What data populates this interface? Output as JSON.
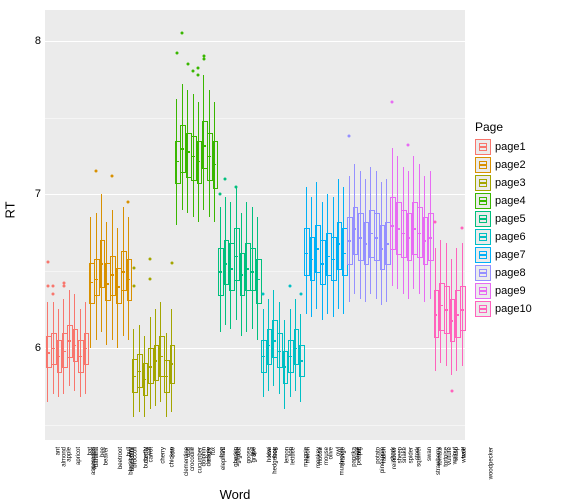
{
  "chart": {
    "type": "boxplot",
    "ylabel": "RT",
    "xlabel": "Word",
    "legend_title": "Page",
    "background_color": "#ebebeb",
    "grid_color": "#ffffff",
    "ylim": [
      5.4,
      8.2
    ],
    "yticks": [
      6,
      7,
      8
    ],
    "label_fontsize": 13,
    "tick_fontsize": 11,
    "xtick_fontsize": 6,
    "pages": [
      {
        "name": "page1",
        "color": "#f8766d"
      },
      {
        "name": "page2",
        "color": "#d89000"
      },
      {
        "name": "page3",
        "color": "#a3a500"
      },
      {
        "name": "page4",
        "color": "#39b600"
      },
      {
        "name": "page5",
        "color": "#00bf7d"
      },
      {
        "name": "page6",
        "color": "#00bfc4"
      },
      {
        "name": "page7",
        "color": "#00b0f6"
      },
      {
        "name": "page8",
        "color": "#9590ff"
      },
      {
        "name": "page9",
        "color": "#e76bf3"
      },
      {
        "name": "page10",
        "color": "#ff62bc"
      }
    ],
    "words": [
      {
        "w": "almond",
        "p": 0,
        "min": 5.65,
        "q1": 5.88,
        "med": 5.97,
        "q3": 6.08,
        "max": 6.3,
        "out": [
          6.56,
          6.4
        ]
      },
      {
        "w": "ant",
        "p": 0,
        "min": 5.7,
        "q1": 5.9,
        "med": 6.0,
        "q3": 6.1,
        "max": 6.3,
        "out": [
          6.35,
          6.4
        ]
      },
      {
        "w": "apple",
        "p": 0,
        "min": 5.68,
        "q1": 5.85,
        "med": 5.95,
        "q3": 6.05,
        "max": 6.25,
        "out": []
      },
      {
        "w": "apricot",
        "p": 0,
        "min": 5.7,
        "q1": 5.88,
        "med": 5.98,
        "q3": 6.1,
        "max": 6.32,
        "out": [
          6.4,
          6.42
        ]
      },
      {
        "w": "asparagus",
        "p": 0,
        "min": 5.75,
        "q1": 5.95,
        "med": 6.05,
        "q3": 6.15,
        "max": 6.38,
        "out": []
      },
      {
        "w": "avocado",
        "p": 0,
        "min": 5.72,
        "q1": 5.92,
        "med": 6.02,
        "q3": 6.12,
        "max": 6.35,
        "out": []
      },
      {
        "w": "banana",
        "p": 0,
        "min": 5.68,
        "q1": 5.85,
        "med": 5.95,
        "q3": 6.05,
        "max": 6.25,
        "out": []
      },
      {
        "w": "bat",
        "p": 0,
        "min": 5.7,
        "q1": 5.9,
        "med": 6.0,
        "q3": 6.1,
        "max": 6.3,
        "out": []
      },
      {
        "w": "beaver",
        "p": 1,
        "min": 6.0,
        "q1": 6.3,
        "med": 6.43,
        "q3": 6.55,
        "max": 6.85,
        "out": []
      },
      {
        "w": "bee",
        "p": 1,
        "min": 6.05,
        "q1": 6.35,
        "med": 6.45,
        "q3": 6.58,
        "max": 6.88,
        "out": [
          7.15
        ]
      },
      {
        "w": "beetroot",
        "p": 1,
        "min": 6.1,
        "q1": 6.4,
        "med": 6.55,
        "q3": 6.7,
        "max": 7.0,
        "out": []
      },
      {
        "w": "blackberry",
        "p": 1,
        "min": 6.02,
        "q1": 6.32,
        "med": 6.42,
        "q3": 6.55,
        "max": 6.82,
        "out": []
      },
      {
        "w": "blackbird",
        "p": 1,
        "min": 6.05,
        "q1": 6.35,
        "med": 6.48,
        "q3": 6.6,
        "max": 6.9,
        "out": [
          7.12
        ]
      },
      {
        "w": "broccoli",
        "p": 1,
        "min": 6.0,
        "q1": 6.3,
        "med": 6.4,
        "q3": 6.52,
        "max": 6.78,
        "out": []
      },
      {
        "w": "bull",
        "p": 1,
        "min": 6.08,
        "q1": 6.38,
        "med": 6.5,
        "q3": 6.63,
        "max": 6.92,
        "out": []
      },
      {
        "w": "butterfly",
        "p": 1,
        "min": 6.05,
        "q1": 6.32,
        "med": 6.45,
        "q3": 6.58,
        "max": 6.85,
        "out": [
          6.95
        ]
      },
      {
        "w": "camel",
        "p": 2,
        "min": 5.55,
        "q1": 5.72,
        "med": 5.82,
        "q3": 5.93,
        "max": 6.12,
        "out": [
          6.4,
          6.52
        ]
      },
      {
        "w": "carrot",
        "p": 2,
        "min": 5.58,
        "q1": 5.75,
        "med": 5.85,
        "q3": 5.96,
        "max": 6.15,
        "out": []
      },
      {
        "w": "cat",
        "p": 2,
        "min": 5.55,
        "q1": 5.7,
        "med": 5.8,
        "q3": 5.9,
        "max": 6.08,
        "out": []
      },
      {
        "w": "cherry",
        "p": 2,
        "min": 5.6,
        "q1": 5.78,
        "med": 5.88,
        "q3": 6.0,
        "max": 6.2,
        "out": [
          6.45,
          6.58
        ]
      },
      {
        "w": "chicken",
        "p": 2,
        "min": 5.62,
        "q1": 5.8,
        "med": 5.92,
        "q3": 6.02,
        "max": 6.25,
        "out": []
      },
      {
        "w": "clementine",
        "p": 2,
        "min": 5.65,
        "q1": 5.82,
        "med": 5.95,
        "q3": 6.08,
        "max": 6.3,
        "out": []
      },
      {
        "w": "cow",
        "p": 2,
        "min": 5.55,
        "q1": 5.72,
        "med": 5.82,
        "q3": 5.92,
        "max": 6.1,
        "out": []
      },
      {
        "w": "crocodile",
        "p": 2,
        "min": 5.58,
        "q1": 5.78,
        "med": 5.9,
        "q3": 6.02,
        "max": 6.25,
        "out": [
          6.55
        ]
      },
      {
        "w": "cucumber",
        "p": 3,
        "min": 6.8,
        "q1": 7.08,
        "med": 7.22,
        "q3": 7.35,
        "max": 7.62,
        "out": [
          7.92
        ]
      },
      {
        "w": "dog",
        "p": 3,
        "min": 6.9,
        "q1": 7.15,
        "med": 7.3,
        "q3": 7.45,
        "max": 7.72,
        "out": [
          8.05
        ]
      },
      {
        "w": "dolphin",
        "p": 3,
        "min": 6.88,
        "q1": 7.12,
        "med": 7.28,
        "q3": 7.4,
        "max": 7.68,
        "out": [
          7.85
        ]
      },
      {
        "w": "donkey",
        "p": 3,
        "min": 6.85,
        "q1": 7.1,
        "med": 7.25,
        "q3": 7.38,
        "max": 7.65,
        "out": [
          7.8
        ]
      },
      {
        "w": "eagle",
        "p": 3,
        "min": 6.82,
        "q1": 7.08,
        "med": 7.22,
        "q3": 7.35,
        "max": 7.6,
        "out": [
          7.78,
          7.82
        ]
      },
      {
        "w": "elephant",
        "p": 3,
        "min": 6.9,
        "q1": 7.18,
        "med": 7.32,
        "q3": 7.48,
        "max": 7.78,
        "out": [
          7.88,
          7.9
        ]
      },
      {
        "w": "fox",
        "p": 3,
        "min": 6.85,
        "q1": 7.1,
        "med": 7.25,
        "q3": 7.4,
        "max": 7.68,
        "out": []
      },
      {
        "w": "frog",
        "p": 3,
        "min": 6.82,
        "q1": 7.05,
        "med": 7.2,
        "q3": 7.35,
        "max": 7.6,
        "out": []
      },
      {
        "w": "gherkin",
        "p": 4,
        "min": 6.1,
        "q1": 6.35,
        "med": 6.5,
        "q3": 6.65,
        "max": 6.92,
        "out": [
          7.0
        ]
      },
      {
        "w": "giraffe",
        "p": 4,
        "min": 6.15,
        "q1": 6.42,
        "med": 6.55,
        "q3": 6.7,
        "max": 6.98,
        "out": [
          7.1
        ]
      },
      {
        "w": "goat",
        "p": 4,
        "min": 6.12,
        "q1": 6.38,
        "med": 6.52,
        "q3": 6.68,
        "max": 6.95,
        "out": []
      },
      {
        "w": "goose",
        "p": 4,
        "min": 6.18,
        "q1": 6.45,
        "med": 6.6,
        "q3": 6.78,
        "max": 7.05,
        "out": [
          7.05
        ]
      },
      {
        "w": "grape",
        "p": 4,
        "min": 6.08,
        "q1": 6.35,
        "med": 6.48,
        "q3": 6.62,
        "max": 6.88,
        "out": []
      },
      {
        "w": "gull",
        "p": 4,
        "min": 6.1,
        "q1": 6.38,
        "med": 6.52,
        "q3": 6.68,
        "max": 6.95,
        "out": []
      },
      {
        "w": "hedgehog",
        "p": 4,
        "min": 6.12,
        "q1": 6.38,
        "med": 6.5,
        "q3": 6.65,
        "max": 6.92,
        "out": []
      },
      {
        "w": "horse",
        "p": 4,
        "min": 6.05,
        "q1": 6.3,
        "med": 6.45,
        "q3": 6.58,
        "max": 6.85,
        "out": []
      },
      {
        "w": "kiwi",
        "p": 5,
        "min": 5.68,
        "q1": 5.85,
        "med": 5.95,
        "q3": 6.05,
        "max": 6.25,
        "out": [
          6.35
        ]
      },
      {
        "w": "leek",
        "p": 5,
        "min": 5.72,
        "q1": 5.9,
        "med": 6.02,
        "q3": 6.12,
        "max": 6.32,
        "out": []
      },
      {
        "w": "lemon",
        "p": 5,
        "min": 5.75,
        "q1": 5.95,
        "med": 6.05,
        "q3": 6.18,
        "max": 6.38,
        "out": []
      },
      {
        "w": "lettuce",
        "p": 5,
        "min": 5.7,
        "q1": 5.88,
        "med": 5.98,
        "q3": 6.1,
        "max": 6.3,
        "out": []
      },
      {
        "w": "lion",
        "p": 5,
        "min": 5.6,
        "q1": 5.78,
        "med": 5.88,
        "q3": 5.98,
        "max": 6.18,
        "out": []
      },
      {
        "w": "magpie",
        "p": 5,
        "min": 5.68,
        "q1": 5.85,
        "med": 5.95,
        "q3": 6.05,
        "max": 6.25,
        "out": [
          6.4
        ]
      },
      {
        "w": "melon",
        "p": 5,
        "min": 5.72,
        "q1": 5.9,
        "med": 6.0,
        "q3": 6.12,
        "max": 6.32,
        "out": []
      },
      {
        "w": "monkey",
        "p": 5,
        "min": 5.65,
        "q1": 5.82,
        "med": 5.92,
        "q3": 6.02,
        "max": 6.22,
        "out": [
          6.35
        ]
      },
      {
        "w": "moose",
        "p": 6,
        "min": 6.22,
        "q1": 6.48,
        "med": 6.62,
        "q3": 6.78,
        "max": 7.05,
        "out": []
      },
      {
        "w": "mouse",
        "p": 6,
        "min": 6.2,
        "q1": 6.45,
        "med": 6.58,
        "q3": 6.72,
        "max": 6.98,
        "out": []
      },
      {
        "w": "mushroom",
        "p": 6,
        "min": 6.25,
        "q1": 6.5,
        "med": 6.65,
        "q3": 6.8,
        "max": 7.08,
        "out": []
      },
      {
        "w": "olive",
        "p": 6,
        "min": 6.18,
        "q1": 6.42,
        "med": 6.55,
        "q3": 6.7,
        "max": 6.95,
        "out": []
      },
      {
        "w": "orange",
        "p": 6,
        "min": 6.22,
        "q1": 6.48,
        "med": 6.6,
        "q3": 6.75,
        "max": 7.0,
        "out": []
      },
      {
        "w": "owl",
        "p": 6,
        "min": 6.2,
        "q1": 6.45,
        "med": 6.58,
        "q3": 6.72,
        "max": 6.98,
        "out": []
      },
      {
        "w": "paprika",
        "p": 6,
        "min": 6.25,
        "q1": 6.52,
        "med": 6.68,
        "q3": 6.82,
        "max": 7.1,
        "out": []
      },
      {
        "w": "peanut",
        "p": 6,
        "min": 6.22,
        "q1": 6.48,
        "med": 6.62,
        "q3": 6.78,
        "max": 7.05,
        "out": []
      },
      {
        "w": "pear",
        "p": 7,
        "min": 6.3,
        "q1": 6.55,
        "med": 6.7,
        "q3": 6.85,
        "max": 7.12,
        "out": [
          7.38
        ]
      },
      {
        "w": "pig",
        "p": 7,
        "min": 6.35,
        "q1": 6.62,
        "med": 6.78,
        "q3": 6.92,
        "max": 7.2,
        "out": []
      },
      {
        "w": "pineapple",
        "p": 7,
        "min": 6.32,
        "q1": 6.58,
        "med": 6.72,
        "q3": 6.88,
        "max": 7.15,
        "out": []
      },
      {
        "w": "potato",
        "p": 7,
        "min": 6.3,
        "q1": 6.55,
        "med": 6.68,
        "q3": 6.82,
        "max": 7.1,
        "out": []
      },
      {
        "w": "radish",
        "p": 7,
        "min": 6.35,
        "q1": 6.6,
        "med": 6.75,
        "q3": 6.9,
        "max": 7.18,
        "out": []
      },
      {
        "w": "reindeer",
        "p": 7,
        "min": 6.32,
        "q1": 6.58,
        "med": 6.72,
        "q3": 6.88,
        "max": 7.15,
        "out": []
      },
      {
        "w": "shark",
        "p": 7,
        "min": 6.28,
        "q1": 6.52,
        "med": 6.65,
        "q3": 6.8,
        "max": 7.08,
        "out": []
      },
      {
        "w": "sheep",
        "p": 7,
        "min": 6.3,
        "q1": 6.55,
        "med": 6.68,
        "q3": 6.82,
        "max": 7.1,
        "out": []
      },
      {
        "w": "snake",
        "p": 8,
        "min": 6.4,
        "q1": 6.65,
        "med": 6.8,
        "q3": 6.98,
        "max": 7.3,
        "out": [
          7.6
        ]
      },
      {
        "w": "spider",
        "p": 8,
        "min": 6.38,
        "q1": 6.62,
        "med": 6.78,
        "q3": 6.95,
        "max": 7.25,
        "out": []
      },
      {
        "w": "squirrel",
        "p": 8,
        "min": 6.35,
        "q1": 6.6,
        "med": 6.75,
        "q3": 6.9,
        "max": 7.18,
        "out": []
      },
      {
        "w": "stork",
        "p": 8,
        "min": 6.32,
        "q1": 6.58,
        "med": 6.72,
        "q3": 6.88,
        "max": 7.15,
        "out": [
          7.32
        ]
      },
      {
        "w": "strawberry",
        "p": 8,
        "min": 6.38,
        "q1": 6.62,
        "med": 6.78,
        "q3": 6.95,
        "max": 7.25,
        "out": []
      },
      {
        "w": "swan",
        "p": 8,
        "min": 6.35,
        "q1": 6.6,
        "med": 6.75,
        "q3": 6.92,
        "max": 7.2,
        "out": []
      },
      {
        "w": "tomato",
        "p": 8,
        "min": 6.3,
        "q1": 6.55,
        "med": 6.7,
        "q3": 6.85,
        "max": 7.12,
        "out": []
      },
      {
        "w": "tortoise",
        "p": 8,
        "min": 6.32,
        "q1": 6.58,
        "med": 6.72,
        "q3": 6.88,
        "max": 7.15,
        "out": []
      },
      {
        "w": "vulture",
        "p": 9,
        "min": 5.85,
        "q1": 6.08,
        "med": 6.22,
        "q3": 6.38,
        "max": 6.65,
        "out": [
          6.82
        ]
      },
      {
        "w": "walnut",
        "p": 9,
        "min": 5.9,
        "q1": 6.12,
        "med": 6.28,
        "q3": 6.42,
        "max": 6.7,
        "out": []
      },
      {
        "w": "wasp",
        "p": 9,
        "min": 5.88,
        "q1": 6.1,
        "med": 6.25,
        "q3": 6.4,
        "max": 6.68,
        "out": []
      },
      {
        "w": "whale",
        "p": 9,
        "min": 5.82,
        "q1": 6.05,
        "med": 6.18,
        "q3": 6.32,
        "max": 6.58,
        "out": [
          5.72
        ]
      },
      {
        "w": "wolf",
        "p": 9,
        "min": 5.85,
        "q1": 6.08,
        "med": 6.22,
        "q3": 6.38,
        "max": 6.65,
        "out": []
      },
      {
        "w": "woodpecker",
        "p": 9,
        "min": 5.88,
        "q1": 6.12,
        "med": 6.25,
        "q3": 6.4,
        "max": 6.68,
        "out": [
          6.78
        ]
      }
    ]
  }
}
